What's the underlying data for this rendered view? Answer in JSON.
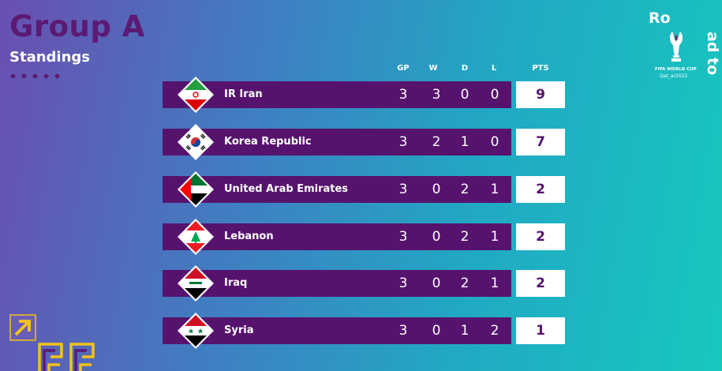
{
  "header": {
    "title": "Group A",
    "subtitle": "Standings"
  },
  "columns": {
    "gp": "GP",
    "w": "W",
    "d": "D",
    "l": "L",
    "pts": "PTS"
  },
  "teams": [
    {
      "name": "IR Iran",
      "gp": "3",
      "w": "3",
      "d": "0",
      "l": "0",
      "pts": "9",
      "flag": "iran-flag"
    },
    {
      "name": "Korea Republic",
      "gp": "3",
      "w": "2",
      "d": "1",
      "l": "0",
      "pts": "7",
      "flag": "korea-flag"
    },
    {
      "name": "United Arab Emirates",
      "gp": "3",
      "w": "0",
      "d": "2",
      "l": "1",
      "pts": "2",
      "flag": "uae-flag"
    },
    {
      "name": "Lebanon",
      "gp": "3",
      "w": "0",
      "d": "2",
      "l": "1",
      "pts": "2",
      "flag": "lebanon-flag"
    },
    {
      "name": "Iraq",
      "gp": "3",
      "w": "0",
      "d": "2",
      "l": "1",
      "pts": "2",
      "flag": "iraq-flag"
    },
    {
      "name": "Syria",
      "gp": "3",
      "w": "0",
      "d": "1",
      "l": "2",
      "pts": "1",
      "flag": "syria-flag"
    }
  ],
  "logo": {
    "ro": "Ro",
    "adto": "ad to",
    "fifa": "FIFA WORLD CUP",
    "qatar": "Qat_ar2022"
  },
  "colors": {
    "purple": "#56136e",
    "title_purple": "#5b1a73",
    "accent_yellow": "#f2c21b"
  }
}
